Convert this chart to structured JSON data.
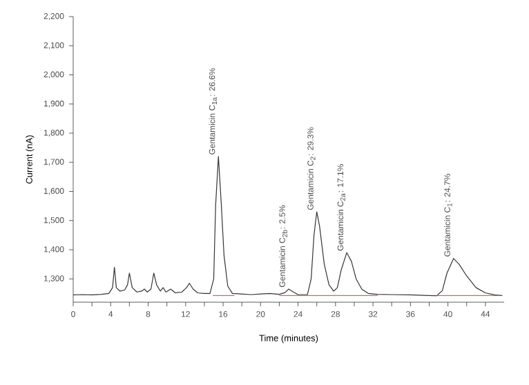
{
  "chart_data": {
    "type": "line",
    "xlabel": "Time (minutes)",
    "ylabel": "Current (nA)",
    "xlim": [
      0,
      46
    ],
    "ylim": [
      1220,
      2200
    ],
    "xticks": [
      0,
      {
        "value": 2,
        "label": null
      },
      4,
      {
        "value": 6,
        "label": null
      },
      8,
      {
        "value": 10,
        "label": null
      },
      12,
      {
        "value": 14,
        "label": null
      },
      16,
      {
        "value": 18,
        "label": null
      },
      20,
      {
        "value": 22,
        "label": null
      },
      24,
      {
        "value": 26,
        "label": null
      },
      28,
      {
        "value": 30,
        "label": null
      },
      32,
      {
        "value": 34,
        "label": null
      },
      36,
      {
        "value": 38,
        "label": null
      },
      40,
      {
        "value": 42,
        "label": null
      },
      44
    ],
    "yticks": [
      {
        "value": 1300,
        "label": "1,300"
      },
      {
        "value": 1400,
        "label": "1,400"
      },
      {
        "value": 1500,
        "label": "1,500"
      },
      {
        "value": 1600,
        "label": "1,600"
      },
      {
        "value": 1700,
        "label": "1,700"
      },
      {
        "value": 1800,
        "label": "1,800"
      },
      {
        "value": 1900,
        "label": "1,900"
      },
      {
        "value": 2000,
        "label": "2,000"
      },
      {
        "value": 2100,
        "label": "2,100"
      },
      {
        "value": 2200,
        "label": "2,200"
      }
    ],
    "marker": "none",
    "line_style": "solid",
    "series": [
      {
        "color": "#333333",
        "x": [
          0,
          1,
          2,
          3,
          3.8,
          4.2,
          4.4,
          4.6,
          5,
          5.5,
          5.8,
          6.0,
          6.3,
          6.8,
          7.3,
          7.6,
          7.9,
          8.3,
          8.6,
          8.9,
          9.3,
          9.6,
          9.9,
          10.4,
          10.9,
          11.6,
          12.1,
          12.4,
          12.8,
          13.3,
          14,
          14.6,
          15,
          15.2,
          15.5,
          15.8,
          16.1,
          16.5,
          17,
          18,
          19,
          20,
          21,
          22,
          22.6,
          23,
          23.5,
          24,
          25,
          25.4,
          25.7,
          26,
          26.3,
          26.8,
          27.3,
          27.8,
          28.2,
          28.6,
          29.2,
          29.7,
          30.2,
          30.8,
          31.5,
          32.5,
          34,
          36,
          38,
          38.8,
          39.4,
          39.9,
          40.6,
          41.2,
          42,
          43,
          44,
          45,
          45.8
        ],
        "values": [
          1245,
          1246,
          1245,
          1247,
          1250,
          1270,
          1340,
          1270,
          1258,
          1262,
          1280,
          1320,
          1270,
          1255,
          1258,
          1265,
          1255,
          1265,
          1320,
          1280,
          1258,
          1270,
          1255,
          1265,
          1252,
          1255,
          1270,
          1285,
          1265,
          1252,
          1250,
          1250,
          1300,
          1550,
          1720,
          1560,
          1380,
          1275,
          1250,
          1248,
          1246,
          1248,
          1250,
          1247,
          1253,
          1265,
          1255,
          1246,
          1246,
          1300,
          1450,
          1530,
          1480,
          1350,
          1280,
          1258,
          1270,
          1330,
          1390,
          1360,
          1300,
          1265,
          1250,
          1247,
          1246,
          1245,
          1243,
          1242,
          1260,
          1320,
          1370,
          1350,
          1310,
          1270,
          1252,
          1245,
          1243
        ]
      },
      {
        "color": "#e06060",
        "x": [
          14.9,
          17.2,
          18,
          22,
          32.5,
          33,
          38.8,
          45.4
        ],
        "values": [
          1243,
          1243,
          null,
          1243,
          1243,
          null,
          1243,
          1243
        ]
      }
    ],
    "annotations": [
      {
        "text": "Gentamicin C$_{1a}$: 26.6%",
        "x": 15.5,
        "y": 1720
      },
      {
        "text": "Gentamicin C$_{2b}$: 2.5%",
        "x": 23,
        "y": 1265
      },
      {
        "text": "Gentamicin C$_{2}$: 29.3%",
        "x": 26,
        "y": 1530
      },
      {
        "text": "Gentamicin C$_{2a}$: 17.1%",
        "x": 29.2,
        "y": 1390
      },
      {
        "text": "Gentamicin C$_{1}$: 24.7%",
        "x": 40.6,
        "y": 1370
      }
    ]
  }
}
